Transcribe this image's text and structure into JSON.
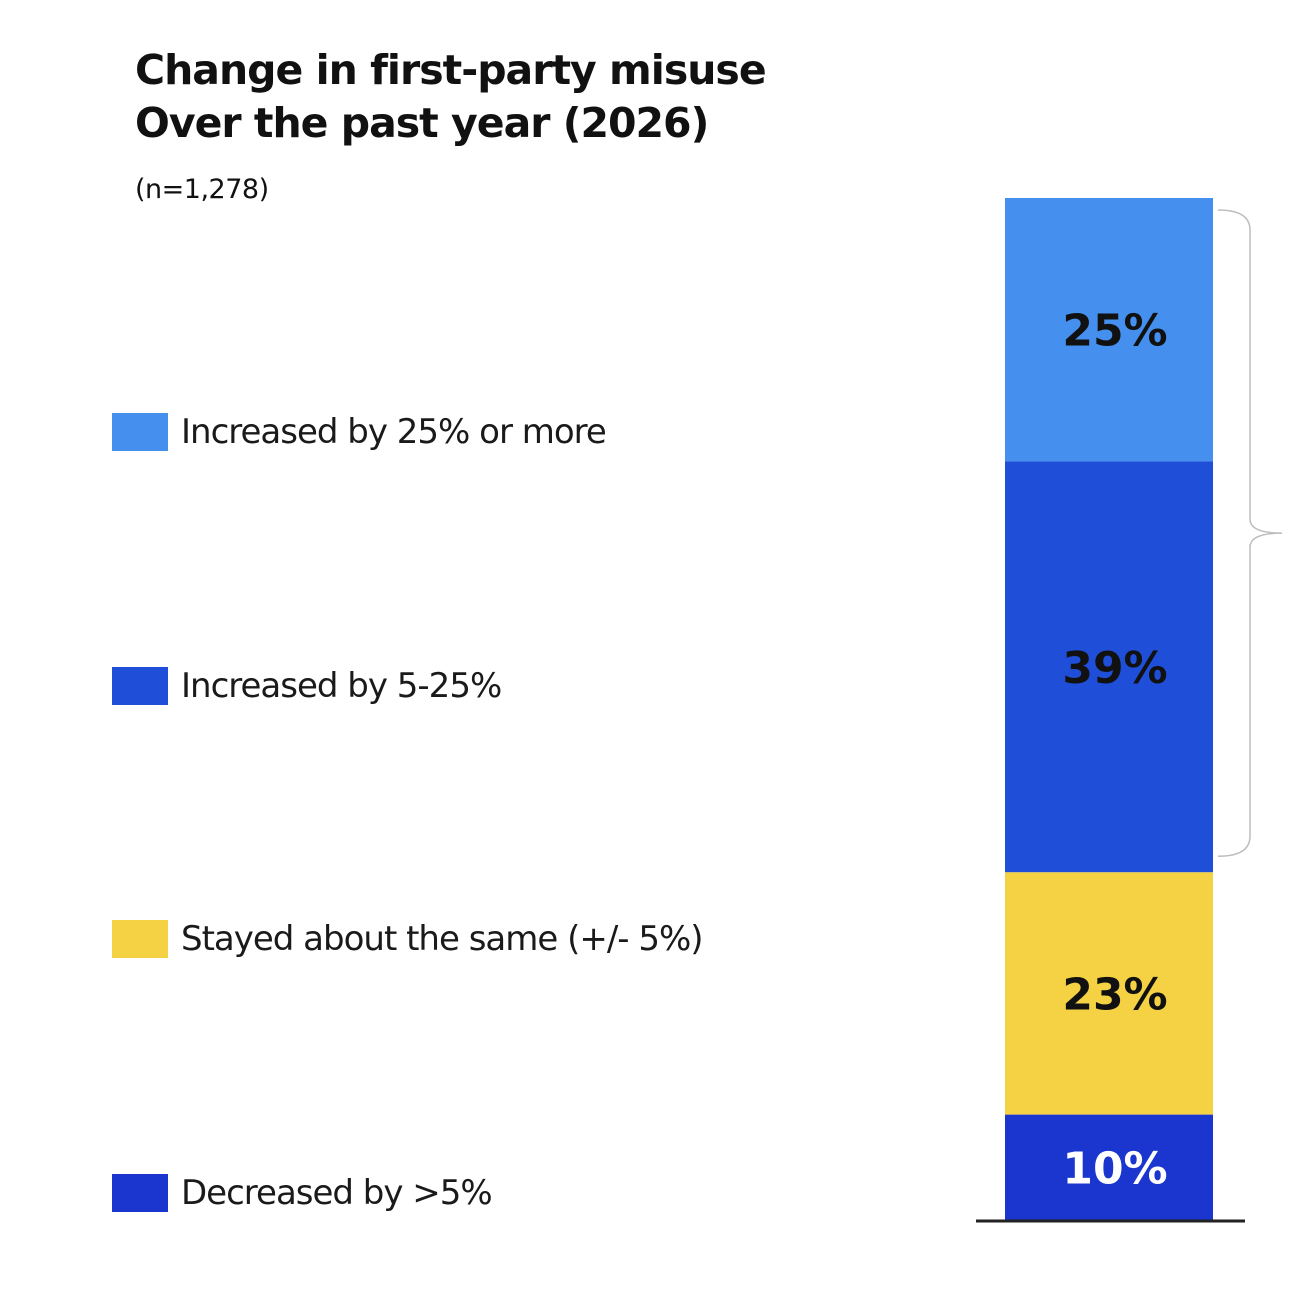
{
  "chart_data": {
    "type": "bar",
    "stacked": true,
    "title_lines": [
      "Change in first-party misuse",
      "Over the past year (2026)"
    ],
    "subtitle": "(n=1,278)",
    "categories": [
      ""
    ],
    "unit": "%",
    "series": [
      {
        "name": "Increased by 25% or more",
        "values": [
          25
        ],
        "label": "25%",
        "color": "#4590ee",
        "label_color": "#111111"
      },
      {
        "name": "Increased by 5-25%",
        "values": [
          39
        ],
        "label": "39%",
        "color": "#1f4fd8",
        "label_color": "#111111"
      },
      {
        "name": "Stayed about the same (+/- 5%)",
        "values": [
          23
        ],
        "label": "23%",
        "color": "#f4d243",
        "label_color": "#111111"
      },
      {
        "name": "Decreased by >5%",
        "values": [
          10
        ],
        "label": "10%",
        "color": "#1a36cf",
        "label_color": "#ffffff"
      }
    ],
    "stack_order": "top-to-bottom",
    "legend_position": "left",
    "bracket": "right side, spanning the two 'Increased' segments",
    "grid": false
  }
}
